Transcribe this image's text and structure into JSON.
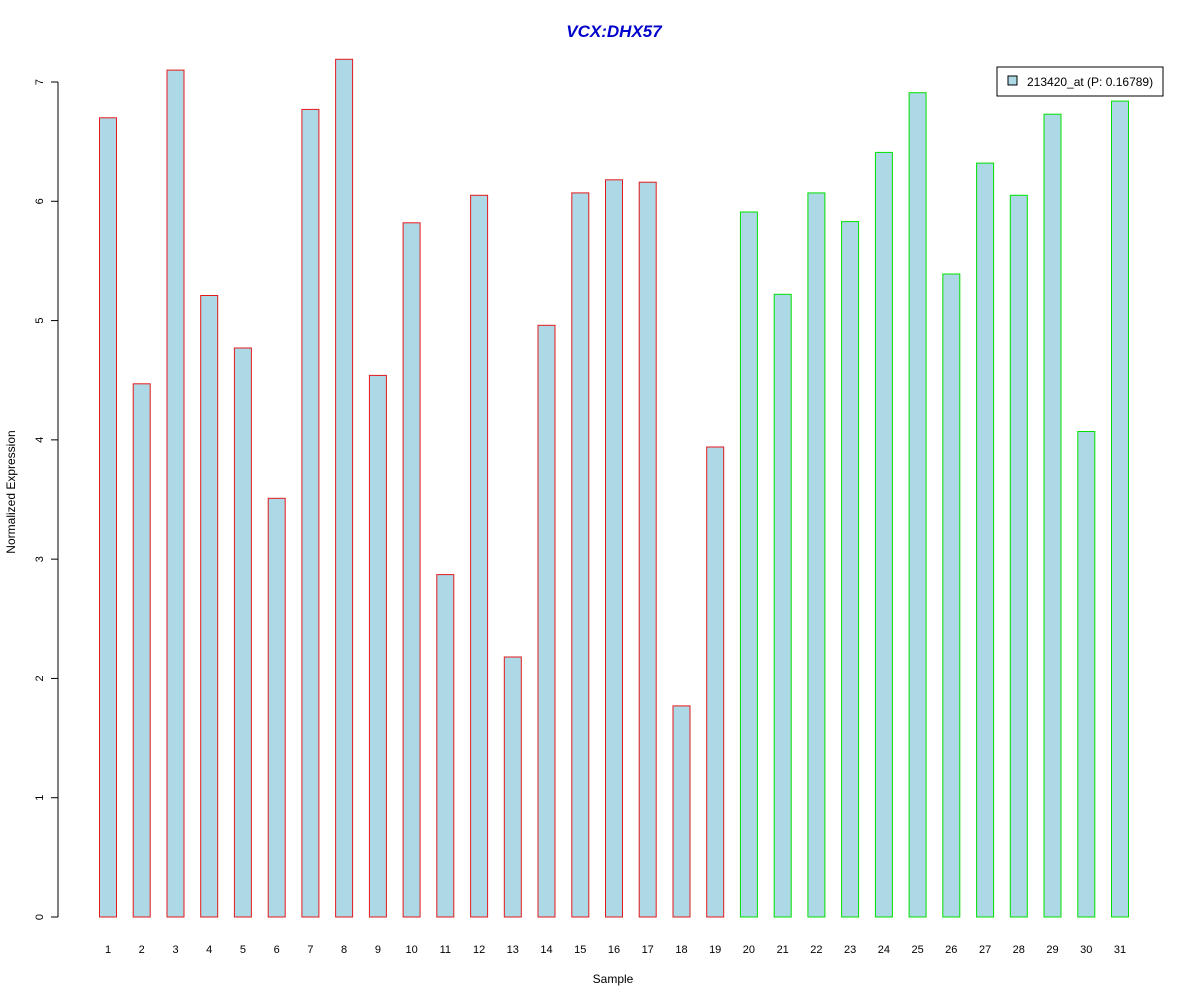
{
  "chart_data": {
    "type": "bar",
    "title": "VCX:DHX57",
    "xlabel": "Sample",
    "ylabel": "Normalized Expression",
    "ylim": [
      0,
      7.3
    ],
    "yticks": [
      "0",
      "1",
      "2",
      "3",
      "4",
      "5",
      "6",
      "7"
    ],
    "categories": [
      "1",
      "2",
      "3",
      "4",
      "5",
      "6",
      "7",
      "8",
      "9",
      "10",
      "11",
      "12",
      "13",
      "14",
      "15",
      "16",
      "17",
      "18",
      "19",
      "20",
      "21",
      "22",
      "23",
      "24",
      "25",
      "26",
      "27",
      "28",
      "29",
      "30",
      "31"
    ],
    "series": [
      {
        "name": "213420_at (P: 0.16789)",
        "values": [
          6.7,
          4.47,
          7.1,
          5.21,
          4.77,
          3.51,
          6.77,
          7.19,
          4.54,
          5.82,
          2.87,
          6.05,
          2.18,
          4.96,
          6.07,
          6.18,
          6.16,
          1.77,
          3.94,
          5.91,
          5.22,
          6.07,
          5.83,
          6.41,
          6.91,
          5.39,
          6.32,
          6.05,
          6.73,
          4.07,
          6.84
        ]
      }
    ],
    "groups": [
      0,
      0,
      0,
      0,
      0,
      0,
      0,
      0,
      0,
      0,
      0,
      0,
      0,
      0,
      0,
      0,
      0,
      0,
      0,
      1,
      1,
      1,
      1,
      1,
      1,
      1,
      1,
      1,
      1,
      1,
      1
    ],
    "group_colors": [
      "#e31a1c",
      "#00e000"
    ],
    "fill_color": "#add8e6",
    "title_color": "#0000cc",
    "grid": false,
    "legend_position": "top-right"
  }
}
